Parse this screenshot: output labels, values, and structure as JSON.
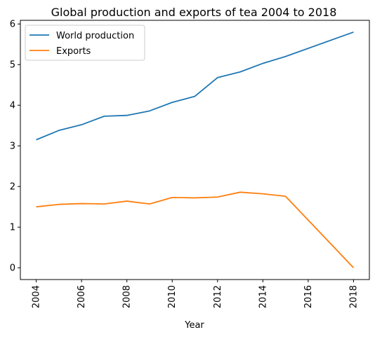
{
  "chart_data": {
    "type": "line",
    "title": "Global production and exports of tea 2004 to 2018",
    "xlabel": "Year",
    "ylabel": "",
    "xlim": [
      2003.3,
      2018.7
    ],
    "ylim": [
      -0.29,
      6.09
    ],
    "xticks": [
      2004,
      2006,
      2008,
      2010,
      2012,
      2014,
      2016,
      2018
    ],
    "yticks": [
      0,
      1,
      2,
      3,
      4,
      5,
      6
    ],
    "grid": false,
    "legend_position": "top-left",
    "series": [
      {
        "name": "World production",
        "color": "#1f77b4",
        "x": [
          2004,
          2005,
          2006,
          2007,
          2008,
          2009,
          2010,
          2011,
          2012,
          2013,
          2014,
          2015,
          2018
        ],
        "y": [
          3.15,
          3.38,
          3.52,
          3.73,
          3.75,
          3.86,
          4.07,
          4.22,
          4.68,
          4.82,
          5.03,
          5.2,
          5.8
        ]
      },
      {
        "name": "Exports",
        "color": "#ff7f0e",
        "x": [
          2004,
          2005,
          2006,
          2007,
          2008,
          2009,
          2010,
          2011,
          2012,
          2013,
          2014,
          2015,
          2018
        ],
        "y": [
          1.5,
          1.56,
          1.58,
          1.57,
          1.64,
          1.57,
          1.73,
          1.72,
          1.74,
          1.86,
          1.82,
          1.76,
          0.0
        ]
      }
    ]
  }
}
